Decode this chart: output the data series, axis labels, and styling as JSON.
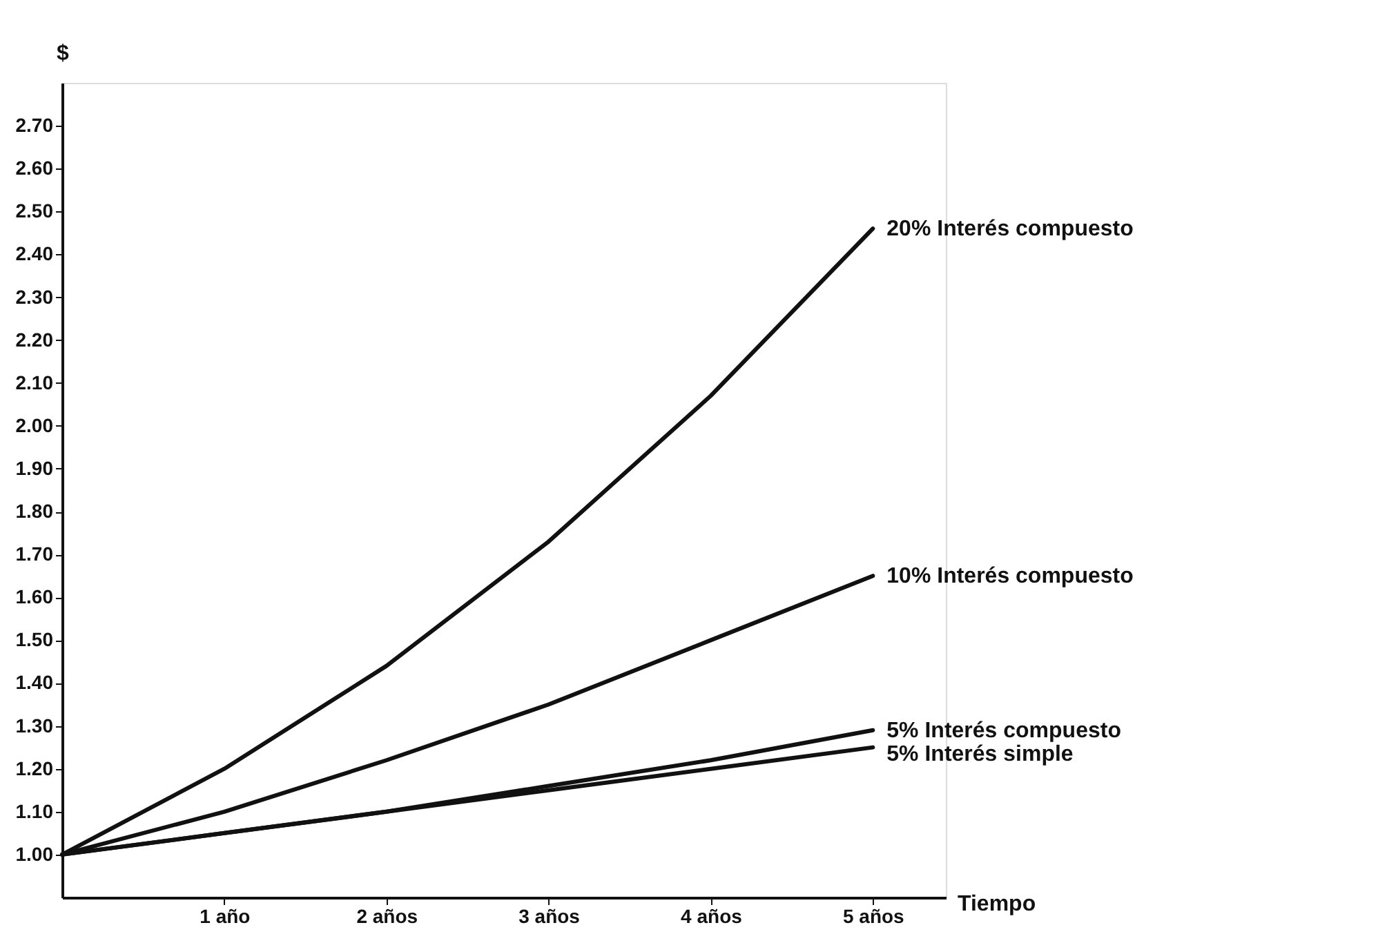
{
  "chart_data": {
    "type": "line",
    "xlabel": "Tiempo",
    "ylabel": "$",
    "x": [
      0,
      1,
      2,
      3,
      4,
      5
    ],
    "series": [
      {
        "name": "20% Interés compuesto",
        "color": "#111111",
        "values": [
          1.0,
          1.2,
          1.44,
          1.73,
          2.07,
          2.46
        ]
      },
      {
        "name": "10% Interés compuesto",
        "color": "#111111",
        "values": [
          1.0,
          1.1,
          1.22,
          1.35,
          1.5,
          1.65
        ]
      },
      {
        "name": "5% Interés compuesto",
        "color": "#111111",
        "values": [
          1.0,
          1.05,
          1.1,
          1.16,
          1.22,
          1.29
        ]
      },
      {
        "name": "5% Interés simple",
        "color": "#111111",
        "values": [
          1.0,
          1.05,
          1.1,
          1.15,
          1.2,
          1.25
        ]
      }
    ],
    "xlim": [
      0,
      5.45
    ],
    "xticks": [
      {
        "value": 1,
        "label": "1 año"
      },
      {
        "value": 2,
        "label": "2 años"
      },
      {
        "value": 3,
        "label": "3 años"
      },
      {
        "value": 4,
        "label": "4 años"
      },
      {
        "value": 5,
        "label": "5 años"
      }
    ],
    "ylim": [
      0.9,
      2.8
    ],
    "yticks": [
      {
        "value": 1.0,
        "label": "1.00"
      },
      {
        "value": 1.1,
        "label": "1.10"
      },
      {
        "value": 1.2,
        "label": "1.20"
      },
      {
        "value": 1.3,
        "label": "1.30"
      },
      {
        "value": 1.4,
        "label": "1.40"
      },
      {
        "value": 1.5,
        "label": "1.50"
      },
      {
        "value": 1.6,
        "label": "1.60"
      },
      {
        "value": 1.7,
        "label": "1.70"
      },
      {
        "value": 1.8,
        "label": "1.80"
      },
      {
        "value": 1.9,
        "label": "1.90"
      },
      {
        "value": 2.0,
        "label": "2.00"
      },
      {
        "value": 2.1,
        "label": "2.10"
      },
      {
        "value": 2.2,
        "label": "2.20"
      },
      {
        "value": 2.3,
        "label": "2.30"
      },
      {
        "value": 2.4,
        "label": "2.40"
      },
      {
        "value": 2.5,
        "label": "2.50"
      },
      {
        "value": 2.6,
        "label": "2.60"
      },
      {
        "value": 2.7,
        "label": "2.70"
      }
    ],
    "grid": false,
    "legend": false,
    "marker": "none",
    "line_style": "solid"
  }
}
